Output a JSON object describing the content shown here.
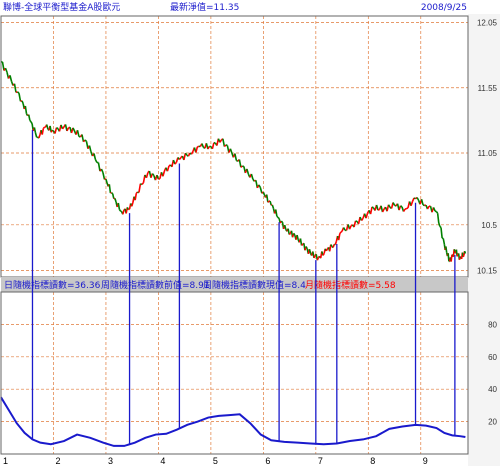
{
  "header": {
    "fund_name": "聯博-全球平衡型基金A股歐元",
    "latest_nav": "最新淨值=11.35",
    "date": "2008/9/25"
  },
  "indicator_legend": {
    "daily": "日隨機指標讀數=36.36",
    "weekly_prev": "周隨機指標讀數前值=8.91",
    "weekly_now": "周隨機指標讀數現值=8.4",
    "monthly": "月隨機指標讀數=5.58"
  },
  "colors": {
    "up": "#ff0000",
    "down": "#008000",
    "grid": "#e07a3a",
    "indicator_line": "#1a1acc",
    "signal_line": "#1a1acc",
    "legend_bar": "#c8c8c8",
    "axis_panel": "#f4f4f4"
  },
  "chart_data": [
    {
      "type": "candlestick-line",
      "title": "聯博-全球平衡型基金A股歐元",
      "x_ticks": [
        "1",
        "2",
        "3",
        "4",
        "5",
        "6",
        "7",
        "8",
        "9"
      ],
      "y_ticks": [
        "10.15",
        "10.5",
        "11.05",
        "11.55",
        "12.05"
      ],
      "ylim": [
        10.1,
        12.1
      ],
      "xlim": [
        1,
        9.9
      ],
      "grid": true,
      "series": [
        {
          "x": [
            1.0,
            1.2,
            1.4,
            1.55,
            1.7,
            1.85,
            2.0,
            2.2,
            2.4,
            2.6,
            2.8,
            3.0,
            3.15,
            3.3,
            3.45,
            3.6,
            3.8,
            4.0,
            4.2,
            4.4,
            4.6,
            4.8,
            5.0,
            5.2,
            5.4,
            5.6,
            5.8,
            6.0,
            6.15,
            6.3,
            6.45,
            6.6,
            6.75,
            6.9,
            7.05,
            7.2,
            7.35,
            7.5,
            7.7,
            7.9,
            8.1,
            8.3,
            8.5,
            8.7,
            8.9,
            9.1,
            9.3,
            9.45,
            9.55,
            9.65,
            9.75,
            9.85
          ],
          "y": [
            11.75,
            11.6,
            11.45,
            11.3,
            11.17,
            11.25,
            11.22,
            11.25,
            11.22,
            11.15,
            11.0,
            10.85,
            10.7,
            10.6,
            10.62,
            10.75,
            10.9,
            10.85,
            10.95,
            11.0,
            11.05,
            11.1,
            11.1,
            11.15,
            11.05,
            10.95,
            10.85,
            10.75,
            10.65,
            10.55,
            10.45,
            10.42,
            10.35,
            10.28,
            10.25,
            10.3,
            10.35,
            10.45,
            10.5,
            10.55,
            10.63,
            10.62,
            10.65,
            10.62,
            10.7,
            10.65,
            10.6,
            10.35,
            10.22,
            10.3,
            10.25,
            10.28
          ]
        }
      ]
    },
    {
      "type": "line",
      "x_ticks": [
        "1",
        "2",
        "3",
        "4",
        "5",
        "6",
        "7",
        "8",
        "9"
      ],
      "y_ticks": [
        "20",
        "40",
        "60",
        "80"
      ],
      "ylim": [
        0,
        100
      ],
      "grid": true,
      "series": [
        {
          "x": [
            1.0,
            1.15,
            1.3,
            1.45,
            1.6,
            1.75,
            1.95,
            2.2,
            2.45,
            2.7,
            2.95,
            3.15,
            3.35,
            3.55,
            3.75,
            3.95,
            4.15,
            4.35,
            4.55,
            4.75,
            4.95,
            5.15,
            5.35,
            5.55,
            5.75,
            5.95,
            6.15,
            6.4,
            6.65,
            6.9,
            7.15,
            7.4,
            7.65,
            7.9,
            8.15,
            8.4,
            8.65,
            8.9,
            9.1,
            9.3,
            9.45,
            9.6,
            9.75,
            9.85
          ],
          "y": [
            35.0,
            27.0,
            19.0,
            13.0,
            9.0,
            7.0,
            6.0,
            8.0,
            12.0,
            10.0,
            7.0,
            5.0,
            5.0,
            7.0,
            10.0,
            12.0,
            12.5,
            15.0,
            18.0,
            20.0,
            22.5,
            23.5,
            24.0,
            24.5,
            19.0,
            12.0,
            8.5,
            7.5,
            7.0,
            6.5,
            6.0,
            6.5,
            8.0,
            9.0,
            11.0,
            15.5,
            17.0,
            18.0,
            17.5,
            16.0,
            13.0,
            11.5,
            11.0,
            10.5
          ]
        }
      ],
      "signal_lines_x": [
        1.6,
        3.45,
        4.4,
        6.3,
        7.0,
        7.4,
        8.9,
        9.65
      ]
    }
  ]
}
